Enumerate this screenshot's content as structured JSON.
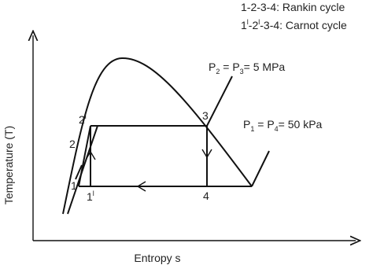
{
  "legend": [
    [
      {
        "t": "1-2-3-4: Rankin cycle"
      }
    ],
    [
      {
        "t": "1"
      },
      {
        "t": "l",
        "sup": true
      },
      {
        "t": "-2"
      },
      {
        "t": "l",
        "sup": true
      },
      {
        "t": "-3-4: Carnot cycle"
      }
    ]
  ],
  "pressure_high": [
    {
      "t": "P"
    },
    {
      "t": "2",
      "sub": true
    },
    {
      "t": " = P"
    },
    {
      "t": "3",
      "sub": true
    },
    {
      "t": "= 5 MPa"
    }
  ],
  "pressure_low": [
    {
      "t": "P"
    },
    {
      "t": "1",
      "sub": true
    },
    {
      "t": " = P"
    },
    {
      "t": "4",
      "sub": true
    },
    {
      "t": "=  50 kPa"
    }
  ],
  "axes": {
    "y_label": "Temperature (T)",
    "x_label": "Entropy  s"
  },
  "points": [
    [
      {
        "t": "1"
      }
    ],
    [
      {
        "t": "2"
      }
    ],
    [
      {
        "t": "2"
      },
      {
        "t": "l",
        "sup": true
      }
    ],
    [
      {
        "t": "3"
      }
    ],
    [
      {
        "t": "4"
      }
    ],
    [
      {
        "t": "1"
      },
      {
        "t": "l",
        "sup": true
      }
    ]
  ]
}
